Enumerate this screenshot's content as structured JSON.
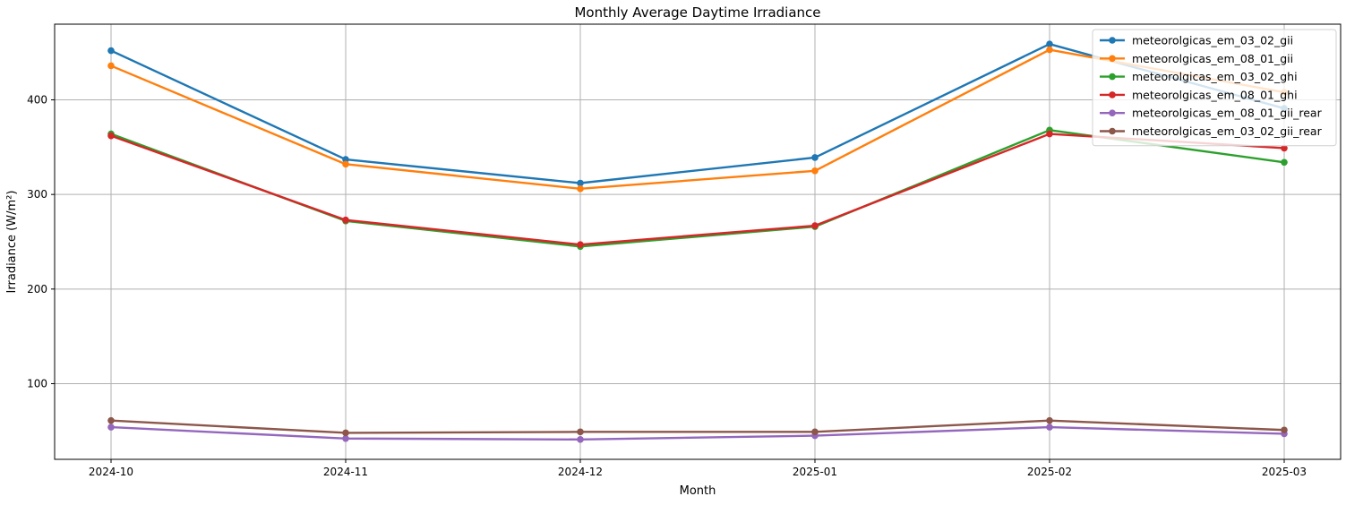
{
  "chart_data": {
    "type": "line",
    "title": "Monthly Average Daytime Irradiance",
    "xlabel": "Month",
    "ylabel": "Irradiance (W/m²)",
    "categories": [
      "2024-10",
      "2024-11",
      "2024-12",
      "2025-01",
      "2025-02",
      "2025-03"
    ],
    "ylim": [
      20,
      480
    ],
    "yticks": [
      100,
      200,
      300,
      400
    ],
    "grid": true,
    "legend_position": "top-right",
    "series": [
      {
        "name": "meteorolgicas_em_03_02_gii",
        "color": "#1f77b4",
        "values": [
          452,
          337,
          312,
          339,
          459,
          391
        ]
      },
      {
        "name": "meteorolgicas_em_08_01_gii",
        "color": "#ff7f0e",
        "values": [
          436,
          332,
          306,
          325,
          453,
          408
        ]
      },
      {
        "name": "meteorolgicas_em_03_02_ghi",
        "color": "#2ca02c",
        "values": [
          364,
          272,
          245,
          266,
          368,
          334
        ]
      },
      {
        "name": "meteorolgicas_em_08_01_ghi",
        "color": "#d62728",
        "values": [
          362,
          273,
          247,
          267,
          364,
          349
        ]
      },
      {
        "name": "meteorolgicas_em_08_01_gii_rear",
        "color": "#9467bd",
        "values": [
          54,
          42,
          41,
          45,
          54,
          47
        ]
      },
      {
        "name": "meteorolgicas_em_03_02_gii_rear",
        "color": "#8c564b",
        "values": [
          61,
          48,
          49,
          49,
          61,
          51
        ]
      }
    ]
  }
}
